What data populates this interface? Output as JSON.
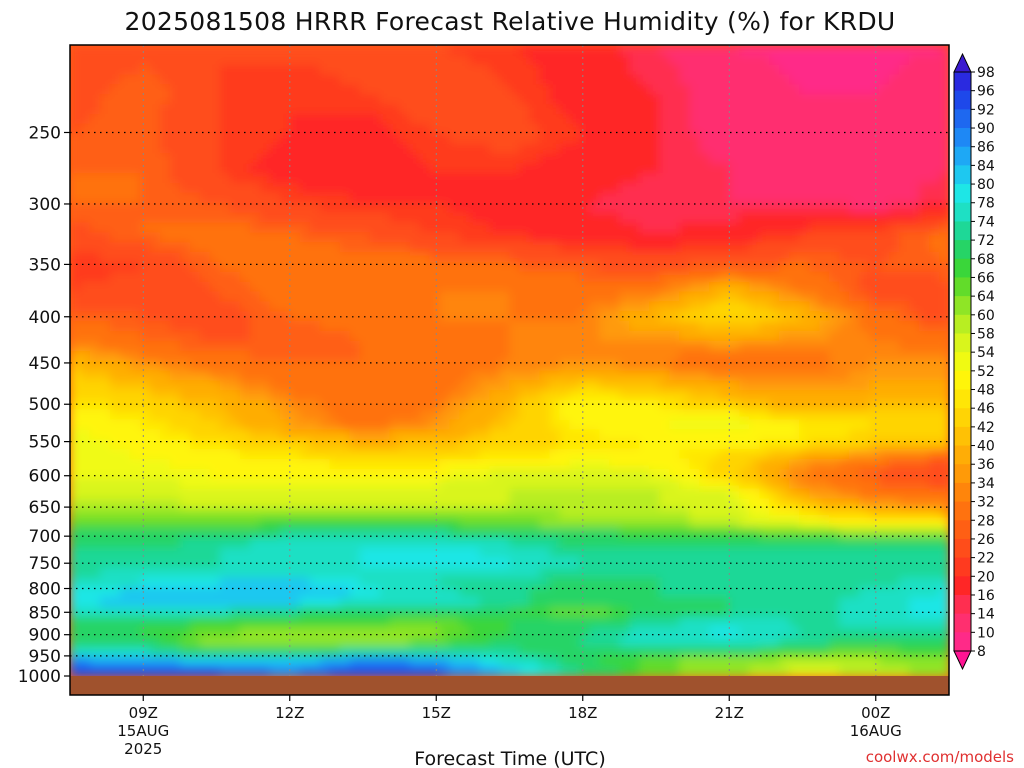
{
  "chart_data": {
    "type": "heatmap",
    "title": "2025081508 HRRR Forecast Relative Humidity (%) for KRDU",
    "xlabel": "Forecast Time (UTC)",
    "ylabel": "",
    "x_axis": {
      "unit": "hours UTC",
      "range_hours": [
        7.5,
        25.5
      ],
      "ticks": [
        {
          "hour": 9,
          "label": "09Z",
          "sub1": "15AUG",
          "sub2": "2025"
        },
        {
          "hour": 12,
          "label": "12Z",
          "sub1": "",
          "sub2": ""
        },
        {
          "hour": 15,
          "label": "15Z",
          "sub1": "",
          "sub2": ""
        },
        {
          "hour": 18,
          "label": "18Z",
          "sub1": "",
          "sub2": ""
        },
        {
          "hour": 21,
          "label": "21Z",
          "sub1": "",
          "sub2": ""
        },
        {
          "hour": 24,
          "label": "00Z",
          "sub1": "16AUG",
          "sub2": ""
        }
      ]
    },
    "y_axis": {
      "unit": "hPa",
      "scale": "log",
      "range": [
        1000,
        200
      ],
      "ticks": [
        250,
        300,
        350,
        400,
        450,
        500,
        550,
        600,
        650,
        700,
        750,
        800,
        850,
        900,
        950,
        1000
      ],
      "gridlines": [
        250,
        300,
        350,
        400,
        450,
        500,
        550,
        600,
        650,
        700,
        750,
        800,
        850,
        900,
        950
      ]
    },
    "grid": true,
    "colorbar": {
      "placement": "right",
      "levels": [
        8,
        10,
        14,
        16,
        20,
        22,
        26,
        28,
        32,
        34,
        36,
        40,
        42,
        46,
        48,
        52,
        54,
        58,
        60,
        64,
        66,
        68,
        72,
        74,
        78,
        80,
        84,
        86,
        90,
        92,
        96,
        98
      ],
      "colors": [
        "#ff1493",
        "#ff2a88",
        "#ff2f6f",
        "#ff2e50",
        "#ff2626",
        "#ff3a1f",
        "#ff4d1a",
        "#ff5f14",
        "#ff720f",
        "#ff850b",
        "#ff9a08",
        "#ffad06",
        "#ffc105",
        "#ffd405",
        "#ffe606",
        "#fff50a",
        "#f0fa12",
        "#d9f51c",
        "#b8ee22",
        "#8fe526",
        "#62dc2a",
        "#3ad63a",
        "#26d466",
        "#1ed897",
        "#1ee0c4",
        "#1ee6e6",
        "#1ec8f0",
        "#1ea8f5",
        "#1e88f5",
        "#1e68f0",
        "#1e48ea",
        "#2a2ae0",
        "#3a1ad0"
      ]
    },
    "ground": {
      "pressure": 1000,
      "color": "#a0522d"
    },
    "x_hours": [
      7.5,
      9,
      10.5,
      12,
      13.5,
      15,
      16.5,
      18,
      19.5,
      21,
      22.5,
      24,
      25.5
    ],
    "rows": [
      {
        "p": 200,
        "rh": [
          22,
          24,
          22,
          23,
          24,
          22,
          20,
          18,
          14,
          10,
          9,
          9,
          10
        ]
      },
      {
        "p": 225,
        "rh": [
          24,
          28,
          22,
          20,
          22,
          26,
          22,
          18,
          16,
          12,
          10,
          10,
          12
        ]
      },
      {
        "p": 250,
        "rh": [
          26,
          27,
          22,
          20,
          18,
          22,
          24,
          20,
          16,
          12,
          10,
          10,
          12
        ]
      },
      {
        "p": 275,
        "rh": [
          28,
          28,
          22,
          18,
          18,
          20,
          20,
          18,
          16,
          14,
          12,
          12,
          14
        ]
      },
      {
        "p": 300,
        "rh": [
          28,
          28,
          26,
          22,
          20,
          20,
          18,
          16,
          14,
          14,
          14,
          12,
          16
        ]
      },
      {
        "p": 325,
        "rh": [
          24,
          28,
          30,
          28,
          26,
          22,
          20,
          18,
          16,
          18,
          22,
          24,
          30
        ]
      },
      {
        "p": 350,
        "rh": [
          20,
          22,
          28,
          30,
          30,
          30,
          28,
          26,
          24,
          26,
          28,
          26,
          28
        ]
      },
      {
        "p": 375,
        "rh": [
          22,
          24,
          26,
          30,
          32,
          32,
          32,
          30,
          32,
          40,
          32,
          24,
          24
        ]
      },
      {
        "p": 400,
        "rh": [
          28,
          26,
          24,
          28,
          30,
          32,
          32,
          32,
          40,
          46,
          40,
          30,
          24
        ]
      },
      {
        "p": 425,
        "rh": [
          32,
          28,
          26,
          26,
          28,
          30,
          32,
          34,
          34,
          36,
          34,
          32,
          30
        ]
      },
      {
        "p": 450,
        "rh": [
          40,
          34,
          30,
          28,
          28,
          30,
          32,
          34,
          32,
          28,
          30,
          34,
          34
        ]
      },
      {
        "p": 475,
        "rh": [
          44,
          40,
          36,
          30,
          28,
          30,
          36,
          42,
          40,
          36,
          34,
          36,
          36
        ]
      },
      {
        "p": 500,
        "rh": [
          48,
          44,
          40,
          34,
          28,
          32,
          40,
          52,
          48,
          42,
          38,
          40,
          40
        ]
      },
      {
        "p": 525,
        "rh": [
          52,
          48,
          42,
          36,
          30,
          34,
          42,
          50,
          52,
          54,
          48,
          46,
          46
        ]
      },
      {
        "p": 550,
        "rh": [
          54,
          50,
          46,
          42,
          38,
          40,
          44,
          46,
          48,
          50,
          48,
          44,
          44
        ]
      },
      {
        "p": 575,
        "rh": [
          54,
          52,
          50,
          48,
          46,
          46,
          48,
          50,
          50,
          44,
          36,
          30,
          26
        ]
      },
      {
        "p": 600,
        "rh": [
          54,
          54,
          52,
          52,
          50,
          52,
          56,
          58,
          54,
          44,
          32,
          26,
          22
        ]
      },
      {
        "p": 625,
        "rh": [
          56,
          56,
          54,
          54,
          54,
          56,
          58,
          58,
          58,
          54,
          36,
          30,
          28
        ]
      },
      {
        "p": 650,
        "rh": [
          60,
          60,
          58,
          58,
          58,
          58,
          58,
          58,
          58,
          56,
          44,
          36,
          34
        ]
      },
      {
        "p": 675,
        "rh": [
          64,
          64,
          64,
          66,
          66,
          66,
          64,
          62,
          60,
          58,
          52,
          48,
          48
        ]
      },
      {
        "p": 700,
        "rh": [
          70,
          70,
          72,
          74,
          74,
          74,
          72,
          70,
          70,
          70,
          68,
          68,
          68
        ]
      },
      {
        "p": 725,
        "rh": [
          72,
          72,
          74,
          76,
          78,
          80,
          76,
          72,
          72,
          72,
          72,
          72,
          74
        ]
      },
      {
        "p": 750,
        "rh": [
          72,
          72,
          74,
          76,
          78,
          80,
          78,
          74,
          74,
          72,
          72,
          72,
          74
        ]
      },
      {
        "p": 775,
        "rh": [
          74,
          76,
          78,
          78,
          76,
          74,
          74,
          72,
          72,
          72,
          72,
          72,
          74
        ]
      },
      {
        "p": 800,
        "rh": [
          78,
          80,
          82,
          84,
          80,
          74,
          72,
          70,
          72,
          72,
          72,
          74,
          78
        ]
      },
      {
        "p": 825,
        "rh": [
          80,
          82,
          84,
          82,
          78,
          76,
          74,
          70,
          72,
          72,
          72,
          76,
          80
        ]
      },
      {
        "p": 850,
        "rh": [
          74,
          76,
          74,
          72,
          70,
          70,
          68,
          64,
          70,
          72,
          72,
          76,
          80
        ]
      },
      {
        "p": 875,
        "rh": [
          70,
          68,
          66,
          66,
          66,
          64,
          68,
          70,
          74,
          76,
          74,
          74,
          76
        ]
      },
      {
        "p": 900,
        "rh": [
          70,
          68,
          64,
          62,
          62,
          64,
          68,
          72,
          76,
          80,
          74,
          72,
          72
        ]
      },
      {
        "p": 925,
        "rh": [
          72,
          70,
          62,
          60,
          62,
          66,
          70,
          72,
          76,
          76,
          72,
          70,
          72
        ]
      },
      {
        "p": 950,
        "rh": [
          80,
          78,
          74,
          76,
          82,
          80,
          74,
          68,
          66,
          64,
          62,
          62,
          64
        ]
      },
      {
        "p": 975,
        "rh": [
          92,
          92,
          90,
          88,
          92,
          90,
          80,
          70,
          64,
          60,
          56,
          58,
          60
        ]
      },
      {
        "p": 1000,
        "rh": [
          94,
          96,
          94,
          90,
          96,
          94,
          84,
          72,
          66,
          62,
          58,
          60,
          62
        ]
      }
    ]
  },
  "credit": "coolwx.com/models"
}
